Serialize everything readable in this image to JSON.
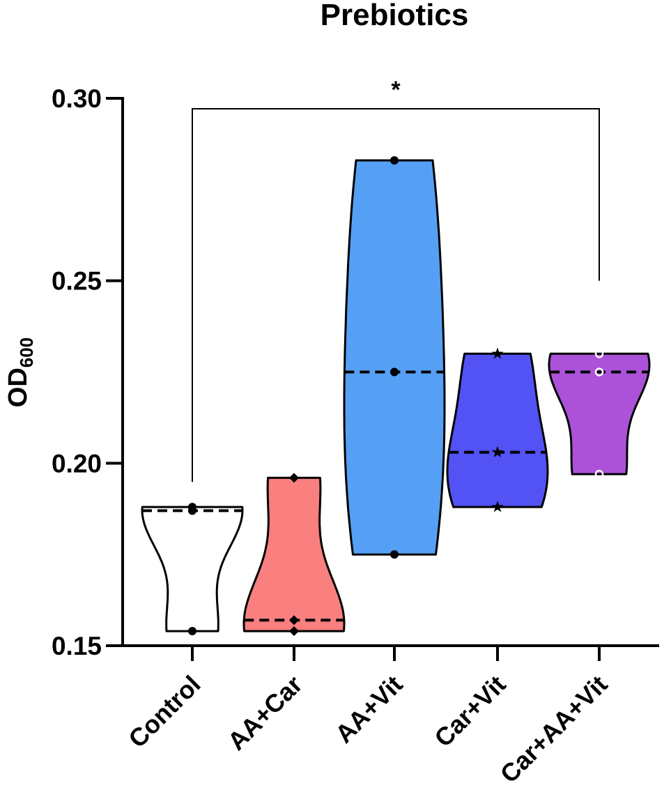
{
  "chart_data": {
    "type": "violin",
    "title": "Prebiotics",
    "ylabel": "OD",
    "ylabel_sub": "600",
    "xlabel": "",
    "ylim": [
      0.15,
      0.3
    ],
    "yticks": [
      "0.15",
      "0.20",
      "0.25",
      "0.30"
    ],
    "grid": false,
    "legend": "none",
    "groups": [
      {
        "label": "Control",
        "color": "#ffffff",
        "marker": "circle",
        "min": 0.154,
        "max": 0.188,
        "median": 0.187,
        "points": [
          0.154,
          0.187,
          0.188
        ]
      },
      {
        "label": "AA+Car",
        "color": "#fa7f7f",
        "marker": "diamond",
        "min": 0.154,
        "max": 0.196,
        "median": 0.157,
        "points": [
          0.154,
          0.157,
          0.196
        ]
      },
      {
        "label": "AA+Vit",
        "color": "#55a0f5",
        "marker": "circle",
        "min": 0.175,
        "max": 0.283,
        "median": 0.225,
        "points": [
          0.175,
          0.225,
          0.283
        ]
      },
      {
        "label": "Car+Vit",
        "color": "#5252f5",
        "marker": "star",
        "min": 0.188,
        "max": 0.23,
        "median": 0.203,
        "points": [
          0.188,
          0.203,
          0.23
        ]
      },
      {
        "label": "Car+AA+Vit",
        "color": "#ac52d9",
        "marker": "open-circle",
        "min": 0.197,
        "max": 0.23,
        "median": 0.225,
        "points": [
          0.197,
          0.225,
          0.23
        ]
      }
    ],
    "annotations": [
      {
        "type": "significance-bracket",
        "from": "Control",
        "to": "Car+AA+Vit",
        "label": "*"
      }
    ]
  }
}
